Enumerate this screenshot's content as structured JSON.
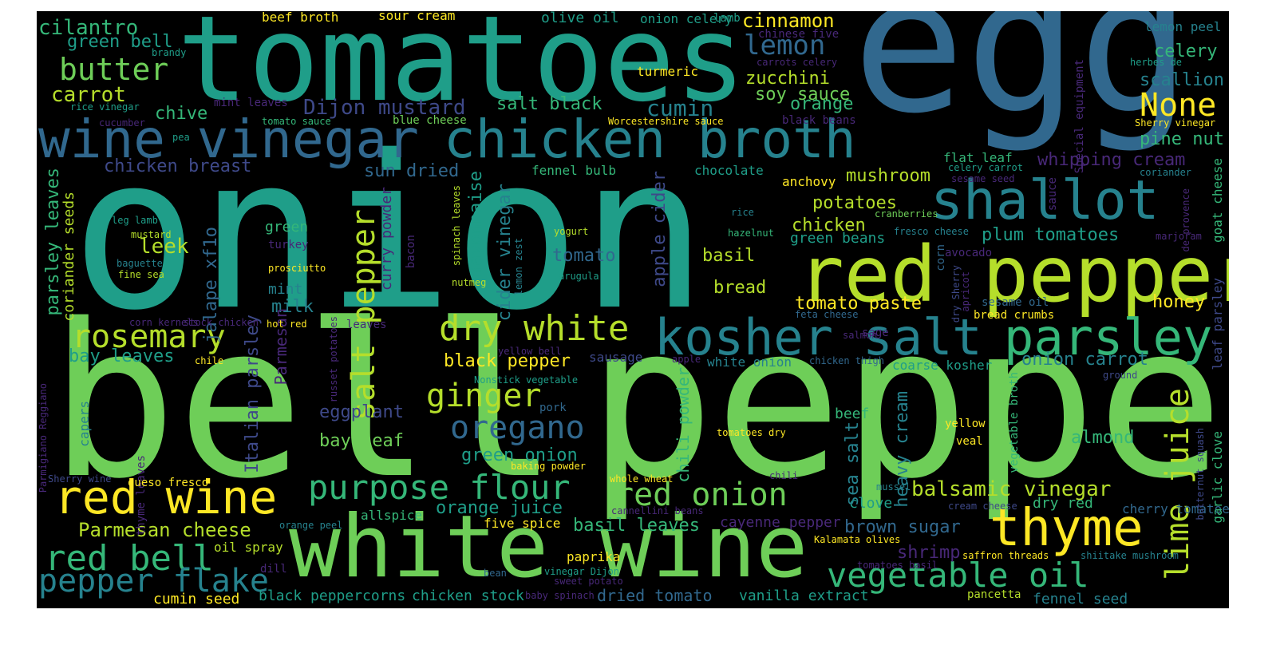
{
  "colors": {
    "background": "#000000",
    "palette": [
      "#fde725",
      "#b5de2b",
      "#6ece58",
      "#35b779",
      "#1f9e89",
      "#26828e",
      "#31688e",
      "#3e4989",
      "#482878",
      "#440154"
    ]
  },
  "words": [
    {
      "text": "onion"
    },
    {
      "text": "bell"
    },
    {
      "text": "pepper"
    },
    {
      "text": "tomatoes"
    },
    {
      "text": "egg"
    },
    {
      "text": "white wine"
    },
    {
      "text": "red pepper"
    },
    {
      "text": "wine vinegar"
    },
    {
      "text": "chicken broth"
    },
    {
      "text": "kosher salt"
    },
    {
      "text": "parsley"
    },
    {
      "text": "shallot"
    },
    {
      "text": "red wine"
    },
    {
      "text": "thyme"
    },
    {
      "text": "dry white"
    },
    {
      "text": "purpose flour"
    },
    {
      "text": "red onion"
    },
    {
      "text": "vegetable oil"
    },
    {
      "text": "red bell"
    },
    {
      "text": "pepper flake"
    },
    {
      "text": "rosemary"
    },
    {
      "text": "butter"
    },
    {
      "text": "lemon"
    },
    {
      "text": "None"
    },
    {
      "text": "oregano"
    },
    {
      "text": "ginger"
    },
    {
      "text": "lime juice"
    },
    {
      "text": "salt pepper"
    },
    {
      "text": "balsamic vinegar"
    },
    {
      "text": "Parmesan cheese"
    },
    {
      "text": "cumin"
    },
    {
      "text": "Dijon mustard"
    },
    {
      "text": "cilantro"
    },
    {
      "text": "green bell"
    },
    {
      "text": "carrot"
    },
    {
      "text": "chive"
    },
    {
      "text": "cinnamon"
    },
    {
      "text": "zucchini"
    },
    {
      "text": "soy sauce"
    },
    {
      "text": "orange"
    },
    {
      "text": "salt black"
    },
    {
      "text": "celery"
    },
    {
      "text": "scallion"
    },
    {
      "text": "pine nut"
    },
    {
      "text": "whipping cream"
    },
    {
      "text": "chicken breast"
    },
    {
      "text": "sun dried"
    },
    {
      "text": "mushroom"
    },
    {
      "text": "potatoes"
    },
    {
      "text": "chicken"
    },
    {
      "text": "green beans"
    },
    {
      "text": "plum tomatoes"
    },
    {
      "text": "leek"
    },
    {
      "text": "tomato"
    },
    {
      "text": "basil"
    },
    {
      "text": "bread"
    },
    {
      "text": "tomato paste"
    },
    {
      "text": "honey"
    },
    {
      "text": "milk"
    },
    {
      "text": "mint"
    },
    {
      "text": "black pepper"
    },
    {
      "text": "bay leaves"
    },
    {
      "text": "onion carrot"
    },
    {
      "text": "coarse kosher"
    },
    {
      "text": "white onion"
    },
    {
      "text": "eggplant"
    },
    {
      "text": "bay leaf"
    },
    {
      "text": "green onion"
    },
    {
      "text": "orange juice"
    },
    {
      "text": "basil leaves"
    },
    {
      "text": "brown sugar"
    },
    {
      "text": "shrimp"
    },
    {
      "text": "almond"
    },
    {
      "text": "clove"
    },
    {
      "text": "dry red"
    },
    {
      "text": "cherry tomatoes"
    },
    {
      "text": "dried tomato"
    },
    {
      "text": "vanilla extract"
    },
    {
      "text": "chicken stock"
    },
    {
      "text": "black peppercorns"
    },
    {
      "text": "cumin seed"
    },
    {
      "text": "fennel seed"
    },
    {
      "text": "paprika"
    },
    {
      "text": "five spice"
    },
    {
      "text": "cayenne pepper"
    },
    {
      "text": "beef"
    },
    {
      "text": "parsley leaves"
    },
    {
      "text": "coriander seeds"
    },
    {
      "text": "jalape xf1o"
    },
    {
      "text": "Italian parsley"
    },
    {
      "text": "Parmesan"
    },
    {
      "text": "curry powder"
    },
    {
      "text": "mayonnaise"
    },
    {
      "text": "cider vinegar"
    },
    {
      "text": "apple cider"
    },
    {
      "text": "chili powder"
    },
    {
      "text": "sea salt"
    },
    {
      "text": "heavy cream"
    },
    {
      "text": "goat cheese"
    },
    {
      "text": "garlic clove"
    },
    {
      "text": "leaf parsley"
    },
    {
      "text": "Special equipment"
    },
    {
      "text": "vegetable broth"
    },
    {
      "text": "thyme leaves"
    },
    {
      "text": "capers"
    },
    {
      "text": "green"
    },
    {
      "text": "beef broth"
    },
    {
      "text": "sour cream"
    },
    {
      "text": "olive oil"
    },
    {
      "text": "onion celery"
    },
    {
      "text": "lamb"
    },
    {
      "text": "chinese five"
    },
    {
      "text": "carrots celery"
    },
    {
      "text": "turmeric"
    },
    {
      "text": "lemon peel"
    },
    {
      "text": "herbes de"
    },
    {
      "text": "brandy"
    },
    {
      "text": "rice vinegar"
    },
    {
      "text": "mint leaves"
    },
    {
      "text": "blue cheese"
    },
    {
      "text": "tomato sauce"
    },
    {
      "text": "Worcestershire sauce"
    },
    {
      "text": "black beans"
    },
    {
      "text": "Sherry vinegar"
    },
    {
      "text": "cucumber"
    },
    {
      "text": "pea"
    },
    {
      "text": "flat leaf"
    },
    {
      "text": "celery carrot"
    },
    {
      "text": "sesame seed"
    },
    {
      "text": "coriander"
    },
    {
      "text": "fennel bulb"
    },
    {
      "text": "chocolate"
    },
    {
      "text": "anchovy"
    },
    {
      "text": "leg lamb"
    },
    {
      "text": "mustard"
    },
    {
      "text": "turkey"
    },
    {
      "text": "baguette"
    },
    {
      "text": "fine sea"
    },
    {
      "text": "prosciutto"
    },
    {
      "text": "bacon"
    },
    {
      "text": "spinach leaves"
    },
    {
      "text": "yogurt"
    },
    {
      "text": "lemon zest"
    },
    {
      "text": "nutmeg"
    },
    {
      "text": "arugula"
    },
    {
      "text": "rice"
    },
    {
      "text": "hazelnut"
    },
    {
      "text": "cranberries"
    },
    {
      "text": "fresco cheese"
    },
    {
      "text": "sauce"
    },
    {
      "text": "de provence"
    },
    {
      "text": "marjoram"
    },
    {
      "text": "avocado"
    },
    {
      "text": "corn"
    },
    {
      "text": "dry Sherry"
    },
    {
      "text": "apricot"
    },
    {
      "text": "sesame oil"
    },
    {
      "text": "bread crumbs"
    },
    {
      "text": "corn kernels"
    },
    {
      "text": "stock chicken"
    },
    {
      "text": "hot red"
    },
    {
      "text": "leaves"
    },
    {
      "text": "feta cheese"
    },
    {
      "text": "sage"
    },
    {
      "text": "salmon"
    },
    {
      "text": "russet potatoes"
    },
    {
      "text": "yellow bell"
    },
    {
      "text": "chile"
    },
    {
      "text": "sausage"
    },
    {
      "text": "apple"
    },
    {
      "text": "chicken thigh"
    },
    {
      "text": "ground"
    },
    {
      "text": "Nonstick vegetable"
    },
    {
      "text": "pork"
    },
    {
      "text": "Parmigiano Reggiano"
    },
    {
      "text": "yellow"
    },
    {
      "text": "veal"
    },
    {
      "text": "butternut squash"
    },
    {
      "text": "tomatoes dry"
    },
    {
      "text": "baking powder"
    },
    {
      "text": "whole wheat"
    },
    {
      "text": "chili"
    },
    {
      "text": "Sherry wine"
    },
    {
      "text": "queso fresco"
    },
    {
      "text": "mussel"
    },
    {
      "text": "cannellini beans"
    },
    {
      "text": "cream cheese"
    },
    {
      "text": "allspice"
    },
    {
      "text": "orange peel"
    },
    {
      "text": "oil spray"
    },
    {
      "text": "Kalamata olives"
    },
    {
      "text": "saffron threads"
    },
    {
      "text": "shiitake mushroom"
    },
    {
      "text": "tomatoes basil"
    },
    {
      "text": "dill"
    },
    {
      "text": "bean"
    },
    {
      "text": "vinegar Dijon"
    },
    {
      "text": "sweet potato"
    },
    {
      "text": "baby spinach"
    },
    {
      "text": "pancetta"
    }
  ]
}
